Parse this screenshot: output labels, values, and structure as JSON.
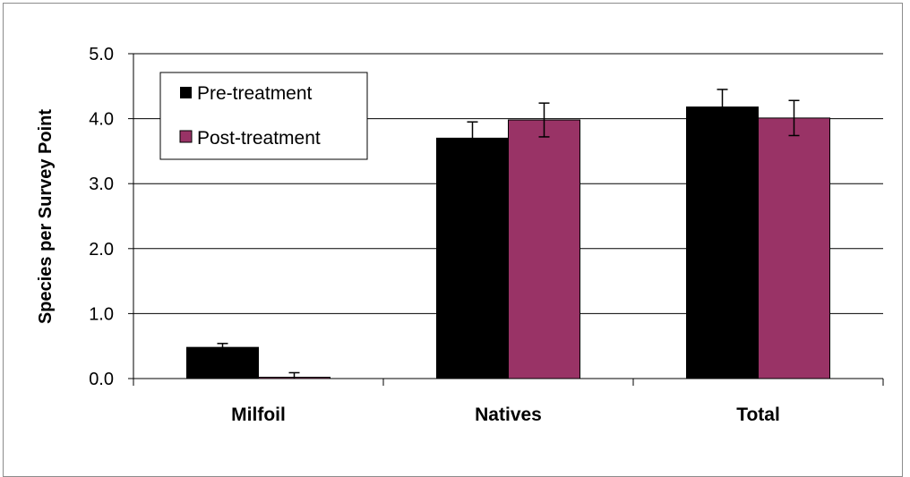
{
  "chart_data": {
    "type": "bar",
    "title": "",
    "xlabel": "",
    "ylabel": "Species per Survey Point",
    "categories": [
      "Milfoil",
      "Natives",
      "Total"
    ],
    "series": [
      {
        "name": "Pre-treatment",
        "color": "#000000",
        "values": [
          0.48,
          3.7,
          4.18
        ],
        "error": [
          0.06,
          0.25,
          0.27
        ]
      },
      {
        "name": "Post-treatment",
        "color": "#993366",
        "values": [
          0.02,
          3.98,
          4.01
        ],
        "error": [
          0.07,
          0.26,
          0.27
        ]
      }
    ],
    "ylim": [
      0,
      5
    ],
    "yticks": [
      "0.0",
      "1.0",
      "2.0",
      "3.0",
      "4.0",
      "5.0"
    ],
    "grid": true,
    "legend": "top-left"
  }
}
